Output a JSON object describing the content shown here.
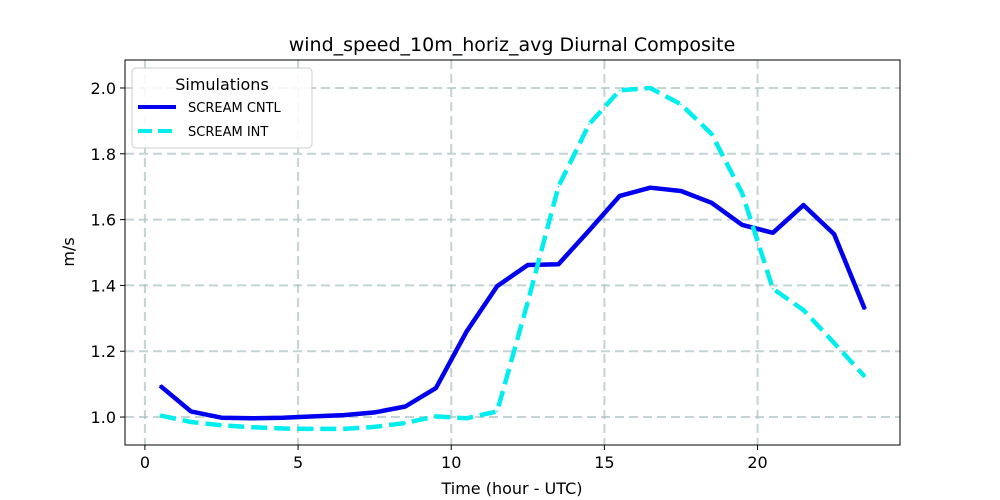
{
  "chart_data": {
    "type": "line",
    "title": "wind_speed_10m_horiz_avg Diurnal Composite",
    "xlabel": "Time (hour - UTC)",
    "ylabel": "m/s",
    "xlim": [
      -0.65,
      24.65
    ],
    "ylim": [
      0.915,
      2.085
    ],
    "xticks": [
      0,
      5,
      10,
      15,
      20
    ],
    "yticks": [
      1.0,
      1.2,
      1.4,
      1.6,
      1.8,
      2.0
    ],
    "xtick_labels": [
      "0",
      "5",
      "10",
      "15",
      "20"
    ],
    "ytick_labels": [
      "1.0",
      "1.2",
      "1.4",
      "1.6",
      "1.8",
      "2.0"
    ],
    "grid": true,
    "legend": {
      "title": "Simulations",
      "position": "upper-left"
    },
    "x": [
      0.5,
      1.5,
      2.5,
      3.5,
      4.5,
      5.5,
      6.5,
      7.5,
      8.5,
      9.5,
      10.5,
      11.5,
      12.5,
      13.5,
      14.5,
      15.5,
      16.5,
      17.5,
      18.5,
      19.5,
      20.5,
      21.5,
      22.5,
      23.5
    ],
    "series": [
      {
        "name": "SCREAM CNTL",
        "color": "#0000ee",
        "style": "solid",
        "values": [
          1.095,
          1.017,
          0.998,
          0.996,
          0.998,
          1.002,
          1.006,
          1.014,
          1.032,
          1.088,
          1.26,
          1.398,
          1.462,
          1.464,
          1.567,
          1.672,
          1.697,
          1.687,
          1.651,
          1.584,
          1.56,
          1.644,
          1.556,
          1.328
        ]
      },
      {
        "name": "SCREAM INT",
        "color": "#00eeee",
        "style": "dashed",
        "values": [
          1.005,
          0.985,
          0.975,
          0.969,
          0.965,
          0.964,
          0.964,
          0.97,
          0.982,
          1.002,
          0.996,
          1.017,
          1.35,
          1.7,
          1.89,
          1.993,
          2.0,
          1.95,
          1.86,
          1.68,
          1.39,
          1.325,
          1.225,
          1.123
        ]
      }
    ]
  }
}
